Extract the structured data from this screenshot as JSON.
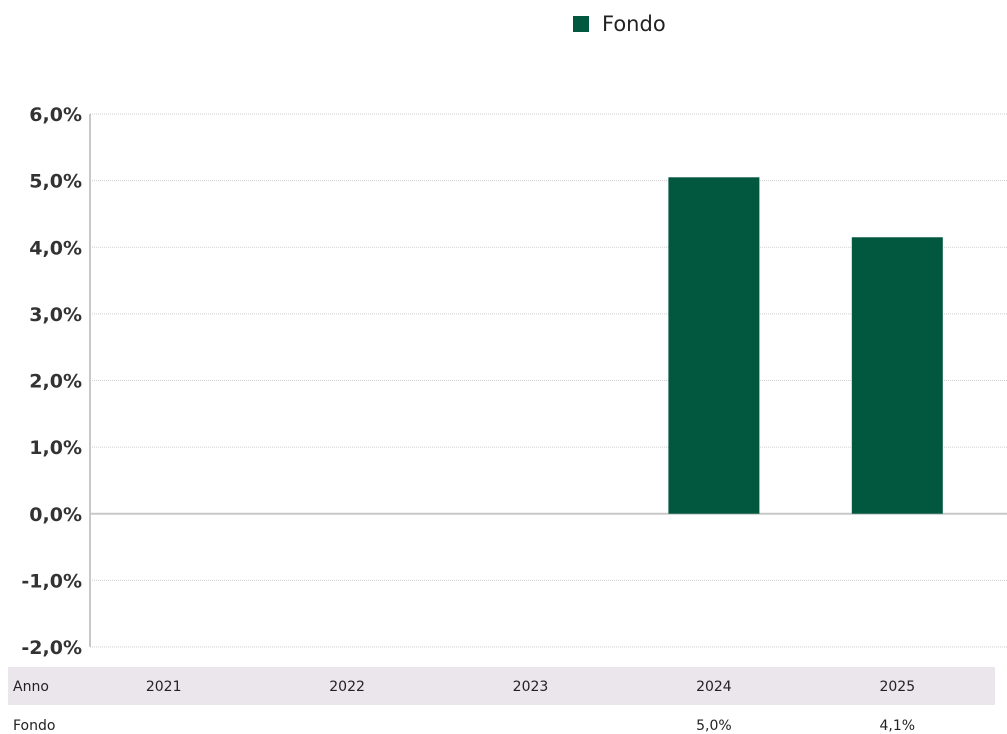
{
  "legend": {
    "label": "Fondo",
    "color": "#02583f"
  },
  "chart_data": {
    "type": "bar",
    "categories": [
      "2021",
      "2022",
      "2023",
      "2024",
      "2025"
    ],
    "series": [
      {
        "name": "Fondo",
        "values": [
          null,
          null,
          null,
          5.05,
          4.15
        ],
        "color": "#02583f"
      }
    ],
    "ylim": [
      -2,
      6
    ],
    "yticks": [
      "6,0%",
      "5,0%",
      "4,0%",
      "3,0%",
      "2,0%",
      "1,0%",
      "0,0%",
      "-1,0%",
      "-2,0%"
    ],
    "grid": true,
    "legend_position": "top"
  },
  "table": {
    "header_label": "Anno",
    "years": [
      "2021",
      "2022",
      "2023",
      "2024",
      "2025"
    ],
    "row_label": "Fondo",
    "row_values": [
      "",
      "",
      "",
      "5,0%",
      "4,1%"
    ]
  }
}
